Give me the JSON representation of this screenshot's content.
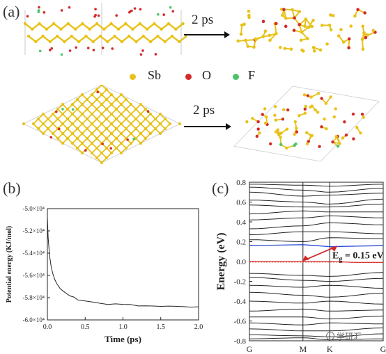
{
  "panels": {
    "a": "(a)",
    "b": "(b)",
    "c": "(c)"
  },
  "simulation": {
    "time_label_top": "2 ps",
    "time_label_bottom": "2 ps"
  },
  "legend": [
    {
      "symbol": "Sb",
      "color": "#e8c21a"
    },
    {
      "symbol": "O",
      "color": "#d42a2a"
    },
    {
      "symbol": "F",
      "color": "#4cc46a"
    }
  ],
  "watermark": "学研汇",
  "chart_data": [
    {
      "type": "line",
      "panel": "b",
      "xlabel": "Time (ps)",
      "ylabel": "Potential energy (KJ/mol)",
      "xlim": [
        0.0,
        2.0
      ],
      "ylim": [
        -60000,
        -50000
      ],
      "xticks": [
        "0.0",
        "0.5",
        "1.0",
        "1.5",
        "2.0"
      ],
      "yticks": [
        "-5.0×10⁴",
        "-5.2×10⁴",
        "-5.4×10⁴",
        "-5.6×10⁴",
        "-5.8×10⁴",
        "-6.0×10⁴"
      ],
      "ytick_values": [
        -50000,
        -52000,
        -54000,
        -56000,
        -58000,
        -60000
      ],
      "series": [
        {
          "x": [
            0.0,
            0.01,
            0.02,
            0.03,
            0.05,
            0.07,
            0.1,
            0.13,
            0.17,
            0.2,
            0.25,
            0.3,
            0.35,
            0.4,
            0.45,
            0.5,
            0.6,
            0.7,
            0.8,
            0.9,
            1.0,
            1.1,
            1.2,
            1.3,
            1.4,
            1.5,
            1.6,
            1.7,
            1.8,
            1.9,
            2.0
          ],
          "y": [
            -50800,
            -52600,
            -53500,
            -54300,
            -55200,
            -55800,
            -56400,
            -56800,
            -57200,
            -57400,
            -57650,
            -57850,
            -58000,
            -58150,
            -58250,
            -58350,
            -58450,
            -58500,
            -58550,
            -58600,
            -58650,
            -58650,
            -58700,
            -58700,
            -58750,
            -58750,
            -58800,
            -58800,
            -58820,
            -58820,
            -58850
          ]
        }
      ]
    },
    {
      "type": "line",
      "panel": "c",
      "ylabel": "Energy (eV)",
      "ylim": [
        -0.8,
        0.8
      ],
      "yticks": [
        "0.8",
        "0.6",
        "0.4",
        "0.2",
        "0.0",
        "-0.2",
        "-0.4",
        "-0.6",
        "-0.8"
      ],
      "ytick_values": [
        0.8,
        0.6,
        0.4,
        0.2,
        0.0,
        -0.2,
        -0.4,
        -0.6,
        -0.8
      ],
      "kpoint_labels": [
        "G",
        "M",
        "K",
        "G"
      ],
      "kpoint_positions": [
        0.0,
        0.4,
        0.6,
        1.0
      ],
      "annotation": "E",
      "annotation_sub": "g",
      "annotation_value": " = 0.15 eV",
      "highlight_bands": [
        {
          "role": "conduction",
          "color": "#2a4cd4",
          "k": [
            0.0,
            0.2,
            0.4,
            0.5,
            0.6,
            0.8,
            1.0
          ],
          "e": [
            0.16,
            0.165,
            0.17,
            0.16,
            0.15,
            0.155,
            0.16
          ]
        },
        {
          "role": "valence",
          "color": "#d42a2a",
          "k": [
            0.0,
            0.2,
            0.4,
            0.5,
            0.6,
            0.8,
            1.0
          ],
          "e": [
            0.0,
            0.0,
            0.0,
            0.0,
            0.0,
            -0.01,
            -0.01
          ]
        }
      ],
      "bands": [
        {
          "k": [
            0.0,
            0.4,
            0.6,
            1.0
          ],
          "e": [
            0.78,
            0.77,
            0.76,
            0.78
          ]
        },
        {
          "k": [
            0.0,
            0.4,
            0.6,
            1.0
          ],
          "e": [
            0.75,
            0.72,
            0.7,
            0.74
          ]
        },
        {
          "k": [
            0.0,
            0.4,
            0.6,
            1.0
          ],
          "e": [
            0.7,
            0.66,
            0.67,
            0.69
          ]
        },
        {
          "k": [
            0.0,
            0.4,
            0.6,
            1.0
          ],
          "e": [
            0.62,
            0.6,
            0.58,
            0.63
          ]
        },
        {
          "k": [
            0.0,
            0.4,
            0.6,
            1.0
          ],
          "e": [
            0.57,
            0.55,
            0.55,
            0.58
          ]
        },
        {
          "k": [
            0.0,
            0.4,
            0.6,
            1.0
          ],
          "e": [
            0.48,
            0.51,
            0.5,
            0.5
          ]
        },
        {
          "k": [
            0.0,
            0.4,
            0.6,
            1.0
          ],
          "e": [
            0.42,
            0.44,
            0.46,
            0.44
          ]
        },
        {
          "k": [
            0.0,
            0.4,
            0.6,
            1.0
          ],
          "e": [
            0.33,
            0.36,
            0.39,
            0.37
          ]
        },
        {
          "k": [
            0.0,
            0.4,
            0.6,
            1.0
          ],
          "e": [
            0.27,
            0.3,
            0.3,
            0.28
          ]
        },
        {
          "k": [
            0.0,
            0.4,
            0.6,
            1.0
          ],
          "e": [
            0.22,
            0.2,
            0.24,
            0.23
          ]
        },
        {
          "k": [
            0.0,
            0.4,
            0.6,
            1.0
          ],
          "e": [
            -0.12,
            -0.14,
            -0.15,
            -0.11
          ]
        },
        {
          "k": [
            0.0,
            0.4,
            0.6,
            1.0
          ],
          "e": [
            -0.16,
            -0.19,
            -0.2,
            -0.17
          ]
        },
        {
          "k": [
            0.0,
            0.4,
            0.6,
            1.0
          ],
          "e": [
            -0.24,
            -0.26,
            -0.24,
            -0.27
          ]
        },
        {
          "k": [
            0.0,
            0.4,
            0.6,
            1.0
          ],
          "e": [
            -0.31,
            -0.34,
            -0.36,
            -0.32
          ]
        },
        {
          "k": [
            0.0,
            0.4,
            0.6,
            1.0
          ],
          "e": [
            -0.4,
            -0.42,
            -0.4,
            -0.43
          ]
        },
        {
          "k": [
            0.0,
            0.4,
            0.6,
            1.0
          ],
          "e": [
            -0.5,
            -0.48,
            -0.5,
            -0.49
          ]
        },
        {
          "k": [
            0.0,
            0.4,
            0.6,
            1.0
          ],
          "e": [
            -0.56,
            -0.56,
            -0.58,
            -0.55
          ]
        },
        {
          "k": [
            0.0,
            0.4,
            0.6,
            1.0
          ],
          "e": [
            -0.62,
            -0.64,
            -0.62,
            -0.63
          ]
        },
        {
          "k": [
            0.0,
            0.4,
            0.6,
            1.0
          ],
          "e": [
            -0.68,
            -0.7,
            -0.7,
            -0.67
          ]
        },
        {
          "k": [
            0.0,
            0.4,
            0.6,
            1.0
          ],
          "e": [
            -0.74,
            -0.75,
            -0.76,
            -0.73
          ]
        },
        {
          "k": [
            0.0,
            0.4,
            0.6,
            1.0
          ],
          "e": [
            -0.78,
            -0.77,
            -0.79,
            -0.78
          ]
        }
      ]
    }
  ]
}
